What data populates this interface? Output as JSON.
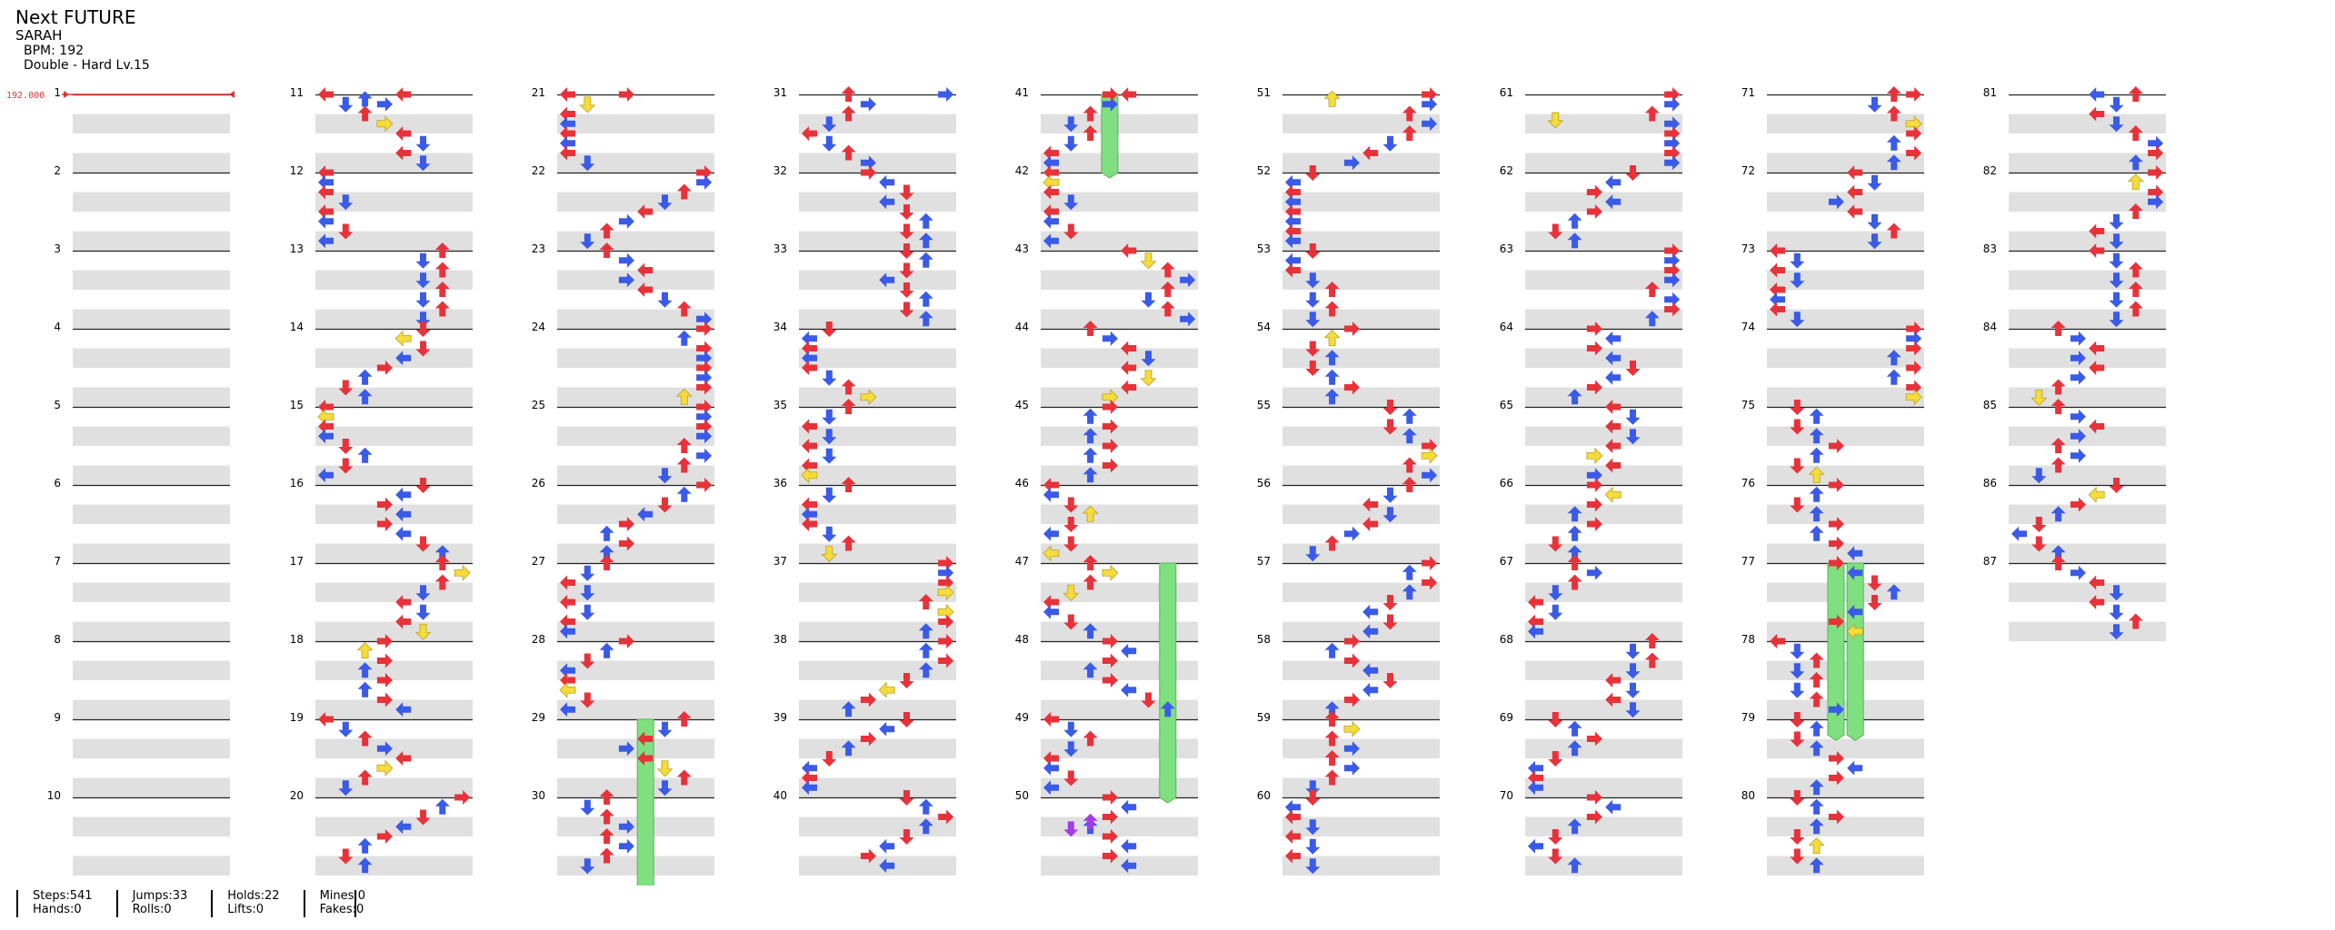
{
  "song": {
    "title": "Next FUTURE",
    "artist": "SARAH",
    "bpm_label": "BPM: 192",
    "difficulty_label": "Double - Hard Lv.15"
  },
  "chart": {
    "bpm_marker_label": "192.000",
    "measure_count": 87,
    "colors": {
      "quarter": "#e8323a",
      "eighth": "#3a5ae8",
      "sixteenth": "#f5dc3c",
      "twelfth": "#a43ce8",
      "hold": "#7fe07f",
      "bpm_marker": "#e03030"
    },
    "note_icons": [
      "arrow-left-icon",
      "arrow-down-icon",
      "arrow-up-icon",
      "arrow-right-icon",
      "hold-bar-icon"
    ],
    "sample_notes": [
      {
        "measure": 11,
        "row": 0,
        "col": 0,
        "type": "quarter"
      },
      {
        "measure": 11,
        "row": 0.5,
        "col": 1,
        "type": "eighth"
      },
      {
        "measure": 11,
        "row": 0.25,
        "col": 2,
        "type": "eighth"
      },
      {
        "measure": 21,
        "row": 0,
        "col": 3,
        "type": "quarter"
      },
      {
        "measure": 31,
        "row": 0,
        "col": 7,
        "type": "eighth"
      },
      {
        "measure": 41,
        "row": 0,
        "col": 3,
        "type": "quarter"
      },
      {
        "measure": 50,
        "row": 1.25,
        "col": 2,
        "type": "twelfth"
      },
      {
        "measure": 50,
        "row": 1.6,
        "col": 1,
        "type": "twelfth"
      },
      {
        "measure": 51,
        "row": 0.25,
        "col": 2,
        "type": "sixteenth"
      },
      {
        "measure": 61,
        "row": 1.3,
        "col": 1,
        "type": "sixteenth"
      },
      {
        "measure": 71,
        "row": 0,
        "col": 7,
        "type": "quarter"
      },
      {
        "measure": 81,
        "row": 0,
        "col": 4,
        "type": "eighth"
      }
    ],
    "sample_holds": [
      {
        "measure": 41,
        "row": 0,
        "col": 3,
        "length": 1.0
      },
      {
        "measure": 29,
        "row": 0,
        "col": 4,
        "length": 3.0
      },
      {
        "measure": 47,
        "row": 0,
        "col": 6,
        "length": 3.0
      },
      {
        "measure": 77,
        "row": 0,
        "col": 3,
        "length": 2.2
      },
      {
        "measure": 77,
        "row": 0,
        "col": 4,
        "length": 2.2
      }
    ]
  },
  "stats": {
    "steps": "Steps:541",
    "hands": "Hands:0",
    "jumps": "Jumps:33",
    "rolls": "Rolls:0",
    "holds": "Holds:22",
    "lifts": "Lifts:0",
    "mines": "Mines:0",
    "fakes": "Fakes:0"
  }
}
